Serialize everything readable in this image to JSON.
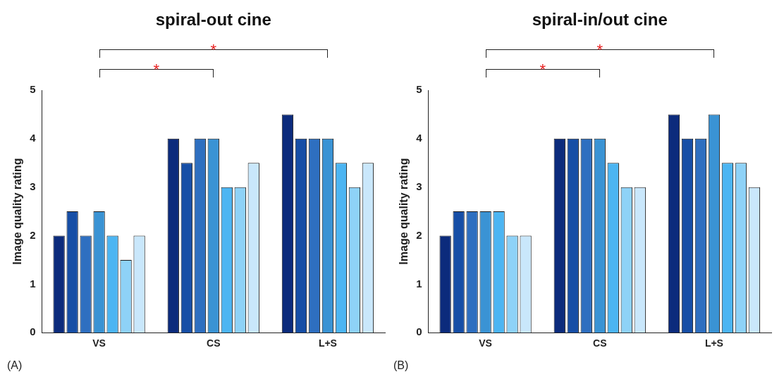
{
  "chart_data": [
    {
      "type": "bar",
      "title": "spiral-out cine",
      "ylabel": "Image quality rating",
      "categories": [
        "VS",
        "CS",
        "L+S"
      ],
      "ylim": [
        0,
        5
      ],
      "yticks": [
        0,
        1,
        2,
        3,
        4,
        5
      ],
      "grid": false,
      "legend": false,
      "annotations": [
        "(A)",
        "*",
        "*"
      ],
      "series": [
        {
          "color": "#0c2b7c",
          "values": [
            2,
            4,
            4.5
          ]
        },
        {
          "color": "#164ea6",
          "values": [
            2.5,
            3.5,
            4
          ]
        },
        {
          "color": "#2e6fc0",
          "values": [
            2,
            4,
            4
          ]
        },
        {
          "color": "#3a93d4",
          "values": [
            2.5,
            4,
            4
          ]
        },
        {
          "color": "#4cb5f2",
          "values": [
            2,
            3,
            3.5
          ]
        },
        {
          "color": "#8ed2f7",
          "values": [
            1.5,
            3,
            3
          ]
        },
        {
          "color": "#c9e7fb",
          "values": [
            2,
            3.5,
            3.5
          ]
        }
      ]
    },
    {
      "type": "bar",
      "title": "spiral-in/out cine",
      "ylabel": "Image quality rating",
      "categories": [
        "VS",
        "CS",
        "L+S"
      ],
      "ylim": [
        0,
        5
      ],
      "yticks": [
        0,
        1,
        2,
        3,
        4,
        5
      ],
      "grid": false,
      "legend": false,
      "annotations": [
        "(B)",
        "*",
        "*"
      ],
      "series": [
        {
          "color": "#0c2b7c",
          "values": [
            2,
            4,
            4.5
          ]
        },
        {
          "color": "#164ea6",
          "values": [
            2.5,
            4,
            4
          ]
        },
        {
          "color": "#2e6fc0",
          "values": [
            2.5,
            4,
            4
          ]
        },
        {
          "color": "#3a93d4",
          "values": [
            2.5,
            4,
            4.5
          ]
        },
        {
          "color": "#4cb5f2",
          "values": [
            2.5,
            3.5,
            3.5
          ]
        },
        {
          "color": "#8ed2f7",
          "values": [
            2,
            3,
            3.5
          ]
        },
        {
          "color": "#c9e7fb",
          "values": [
            2,
            3,
            3
          ]
        }
      ]
    }
  ]
}
